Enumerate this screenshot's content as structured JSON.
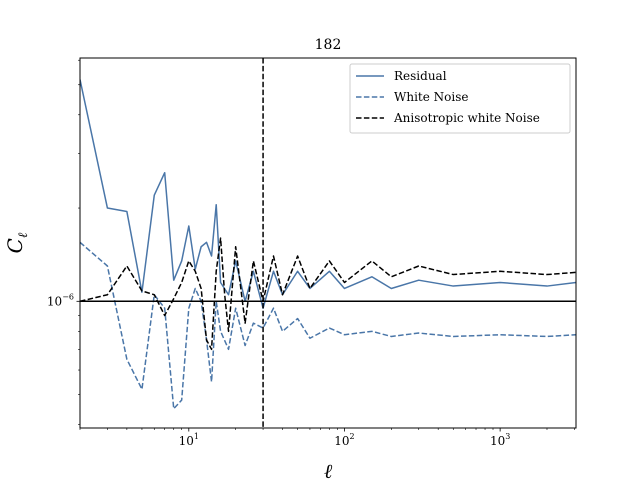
{
  "chart_data": {
    "type": "line",
    "title": "182",
    "xlabel": "ℓ",
    "ylabel": "C",
    "ylabel_sub": "ℓ",
    "xscale": "log",
    "yscale": "log",
    "xlim": [
      2,
      3072
    ],
    "ylim": [
      3.9e-07,
      6.1e-06
    ],
    "x_ticks": [
      {
        "value": 10,
        "base": "10",
        "exp": "1"
      },
      {
        "value": 100,
        "base": "10",
        "exp": "2"
      },
      {
        "value": 1000,
        "base": "10",
        "exp": "3"
      }
    ],
    "y_ticks": [
      {
        "value": 1e-06,
        "base": "10",
        "exp": "−6"
      }
    ],
    "reference_lines": {
      "horizontal_y": 1e-06,
      "vertical_x": 30
    },
    "legend_position": "upper right",
    "series": [
      {
        "name": "Residual",
        "color": "#4a76a8",
        "style": "solid",
        "points": [
          [
            2,
            5.2e-06
          ],
          [
            3,
            2e-06
          ],
          [
            4,
            1.95e-06
          ],
          [
            5,
            1.07e-06
          ],
          [
            6,
            2.2e-06
          ],
          [
            7,
            2.6e-06
          ],
          [
            8,
            1.17e-06
          ],
          [
            9,
            1.35e-06
          ],
          [
            10,
            1.75e-06
          ],
          [
            11,
            1.27e-06
          ],
          [
            12,
            1.5e-06
          ],
          [
            13,
            1.55e-06
          ],
          [
            14,
            1.4e-06
          ],
          [
            15,
            2.05e-06
          ],
          [
            16,
            1.15e-06
          ],
          [
            18,
            1.05e-06
          ],
          [
            20,
            1.35e-06
          ],
          [
            23,
            1e-06
          ],
          [
            26,
            1.25e-06
          ],
          [
            30,
            9.5e-07
          ],
          [
            35,
            1.25e-06
          ],
          [
            40,
            1.05e-06
          ],
          [
            50,
            1.25e-06
          ],
          [
            60,
            1.1e-06
          ],
          [
            80,
            1.25e-06
          ],
          [
            100,
            1.1e-06
          ],
          [
            150,
            1.2e-06
          ],
          [
            200,
            1.1e-06
          ],
          [
            300,
            1.17e-06
          ],
          [
            500,
            1.12e-06
          ],
          [
            1000,
            1.15e-06
          ],
          [
            2000,
            1.12e-06
          ],
          [
            3072,
            1.15e-06
          ]
        ]
      },
      {
        "name": "White Noise",
        "color": "#4a76a8",
        "style": "dashed",
        "points": [
          [
            2,
            1.55e-06
          ],
          [
            3,
            1.3e-06
          ],
          [
            4,
            6.5e-07
          ],
          [
            5,
            5.2e-07
          ],
          [
            6,
            1.05e-06
          ],
          [
            7,
            9.5e-07
          ],
          [
            8,
            4.5e-07
          ],
          [
            9,
            4.8e-07
          ],
          [
            10,
            9.5e-07
          ],
          [
            11,
            1.1e-06
          ],
          [
            12,
            1e-06
          ],
          [
            13,
            7.5e-07
          ],
          [
            14,
            5.5e-07
          ],
          [
            15,
            1e-06
          ],
          [
            16,
            8e-07
          ],
          [
            18,
            7e-07
          ],
          [
            20,
            9.5e-07
          ],
          [
            23,
            7.2e-07
          ],
          [
            26,
            8.5e-07
          ],
          [
            30,
            8.2e-07
          ],
          [
            35,
            9.5e-07
          ],
          [
            40,
            8e-07
          ],
          [
            50,
            8.8e-07
          ],
          [
            60,
            7.6e-07
          ],
          [
            80,
            8.2e-07
          ],
          [
            100,
            7.8e-07
          ],
          [
            150,
            8e-07
          ],
          [
            200,
            7.7e-07
          ],
          [
            300,
            7.9e-07
          ],
          [
            500,
            7.7e-07
          ],
          [
            1000,
            7.8e-07
          ],
          [
            2000,
            7.7e-07
          ],
          [
            3072,
            7.8e-07
          ]
        ]
      },
      {
        "name": "Anisotropic white Noise",
        "color": "#000000",
        "style": "dashed",
        "points": [
          [
            2,
            1e-06
          ],
          [
            3,
            1.05e-06
          ],
          [
            4,
            1.3e-06
          ],
          [
            5,
            1.08e-06
          ],
          [
            6,
            1.05e-06
          ],
          [
            7,
            9e-07
          ],
          [
            8,
            1.02e-06
          ],
          [
            9,
            1.15e-06
          ],
          [
            10,
            1.35e-06
          ],
          [
            11,
            1.25e-06
          ],
          [
            12,
            1.1e-06
          ],
          [
            13,
            7.5e-07
          ],
          [
            14,
            7e-07
          ],
          [
            15,
            1.25e-06
          ],
          [
            16,
            1.6e-06
          ],
          [
            17,
            1.05e-06
          ],
          [
            18,
            8e-07
          ],
          [
            20,
            1.5e-06
          ],
          [
            23,
            8.5e-07
          ],
          [
            26,
            1.35e-06
          ],
          [
            30,
            1e-06
          ],
          [
            35,
            1.4e-06
          ],
          [
            40,
            1.05e-06
          ],
          [
            50,
            1.4e-06
          ],
          [
            60,
            1.1e-06
          ],
          [
            80,
            1.35e-06
          ],
          [
            100,
            1.15e-06
          ],
          [
            150,
            1.35e-06
          ],
          [
            200,
            1.2e-06
          ],
          [
            300,
            1.3e-06
          ],
          [
            500,
            1.22e-06
          ],
          [
            1000,
            1.25e-06
          ],
          [
            2000,
            1.22e-06
          ],
          [
            3072,
            1.24e-06
          ]
        ]
      }
    ]
  }
}
